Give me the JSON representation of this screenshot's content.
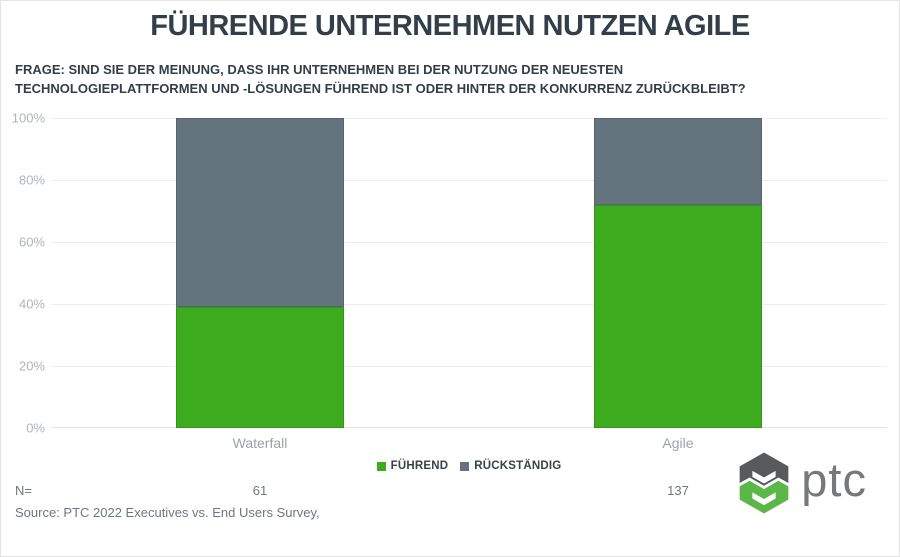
{
  "header": {
    "title": "FÜHRENDE UNTERNEHMEN NUTZEN AGILE",
    "subtitle_line1": "FRAGE: SIND SIE DER MEINUNG, DASS IHR UNTERNEHMEN BEI DER NUTZUNG DER NEUESTEN",
    "subtitle_line2": "TECHNOLOGIEPLATTFORMEN UND -LÖSUNGEN FÜHREND IST ODER HINTER DER KONKURRENZ ZURÜCKBLEIBT?"
  },
  "chart_data": {
    "type": "bar",
    "stacked": true,
    "categories": [
      "Waterfall",
      "Agile"
    ],
    "series": [
      {
        "name": "FÜHREND",
        "color": "#3dab1e",
        "values": [
          39,
          72
        ]
      },
      {
        "name": "RÜCKSTÄNDIG",
        "color": "#64747f",
        "values": [
          61,
          28
        ]
      }
    ],
    "y_ticks": [
      "0%",
      "20%",
      "40%",
      "60%",
      "80%",
      "100%"
    ],
    "ylim": [
      0,
      100
    ],
    "grid": true,
    "legend_position": "bottom",
    "xlabel": "",
    "ylabel": ""
  },
  "footer": {
    "n_label": "N=",
    "n_values": [
      "61",
      "137"
    ],
    "source": "Source: PTC 2022 Executives vs. End Users Survey,"
  },
  "logo": {
    "text": "ptc",
    "icon": "ptc-hexagon-logo",
    "icon_gray": "#58595b",
    "icon_green": "#5cb749",
    "text_color": "#76787a"
  }
}
